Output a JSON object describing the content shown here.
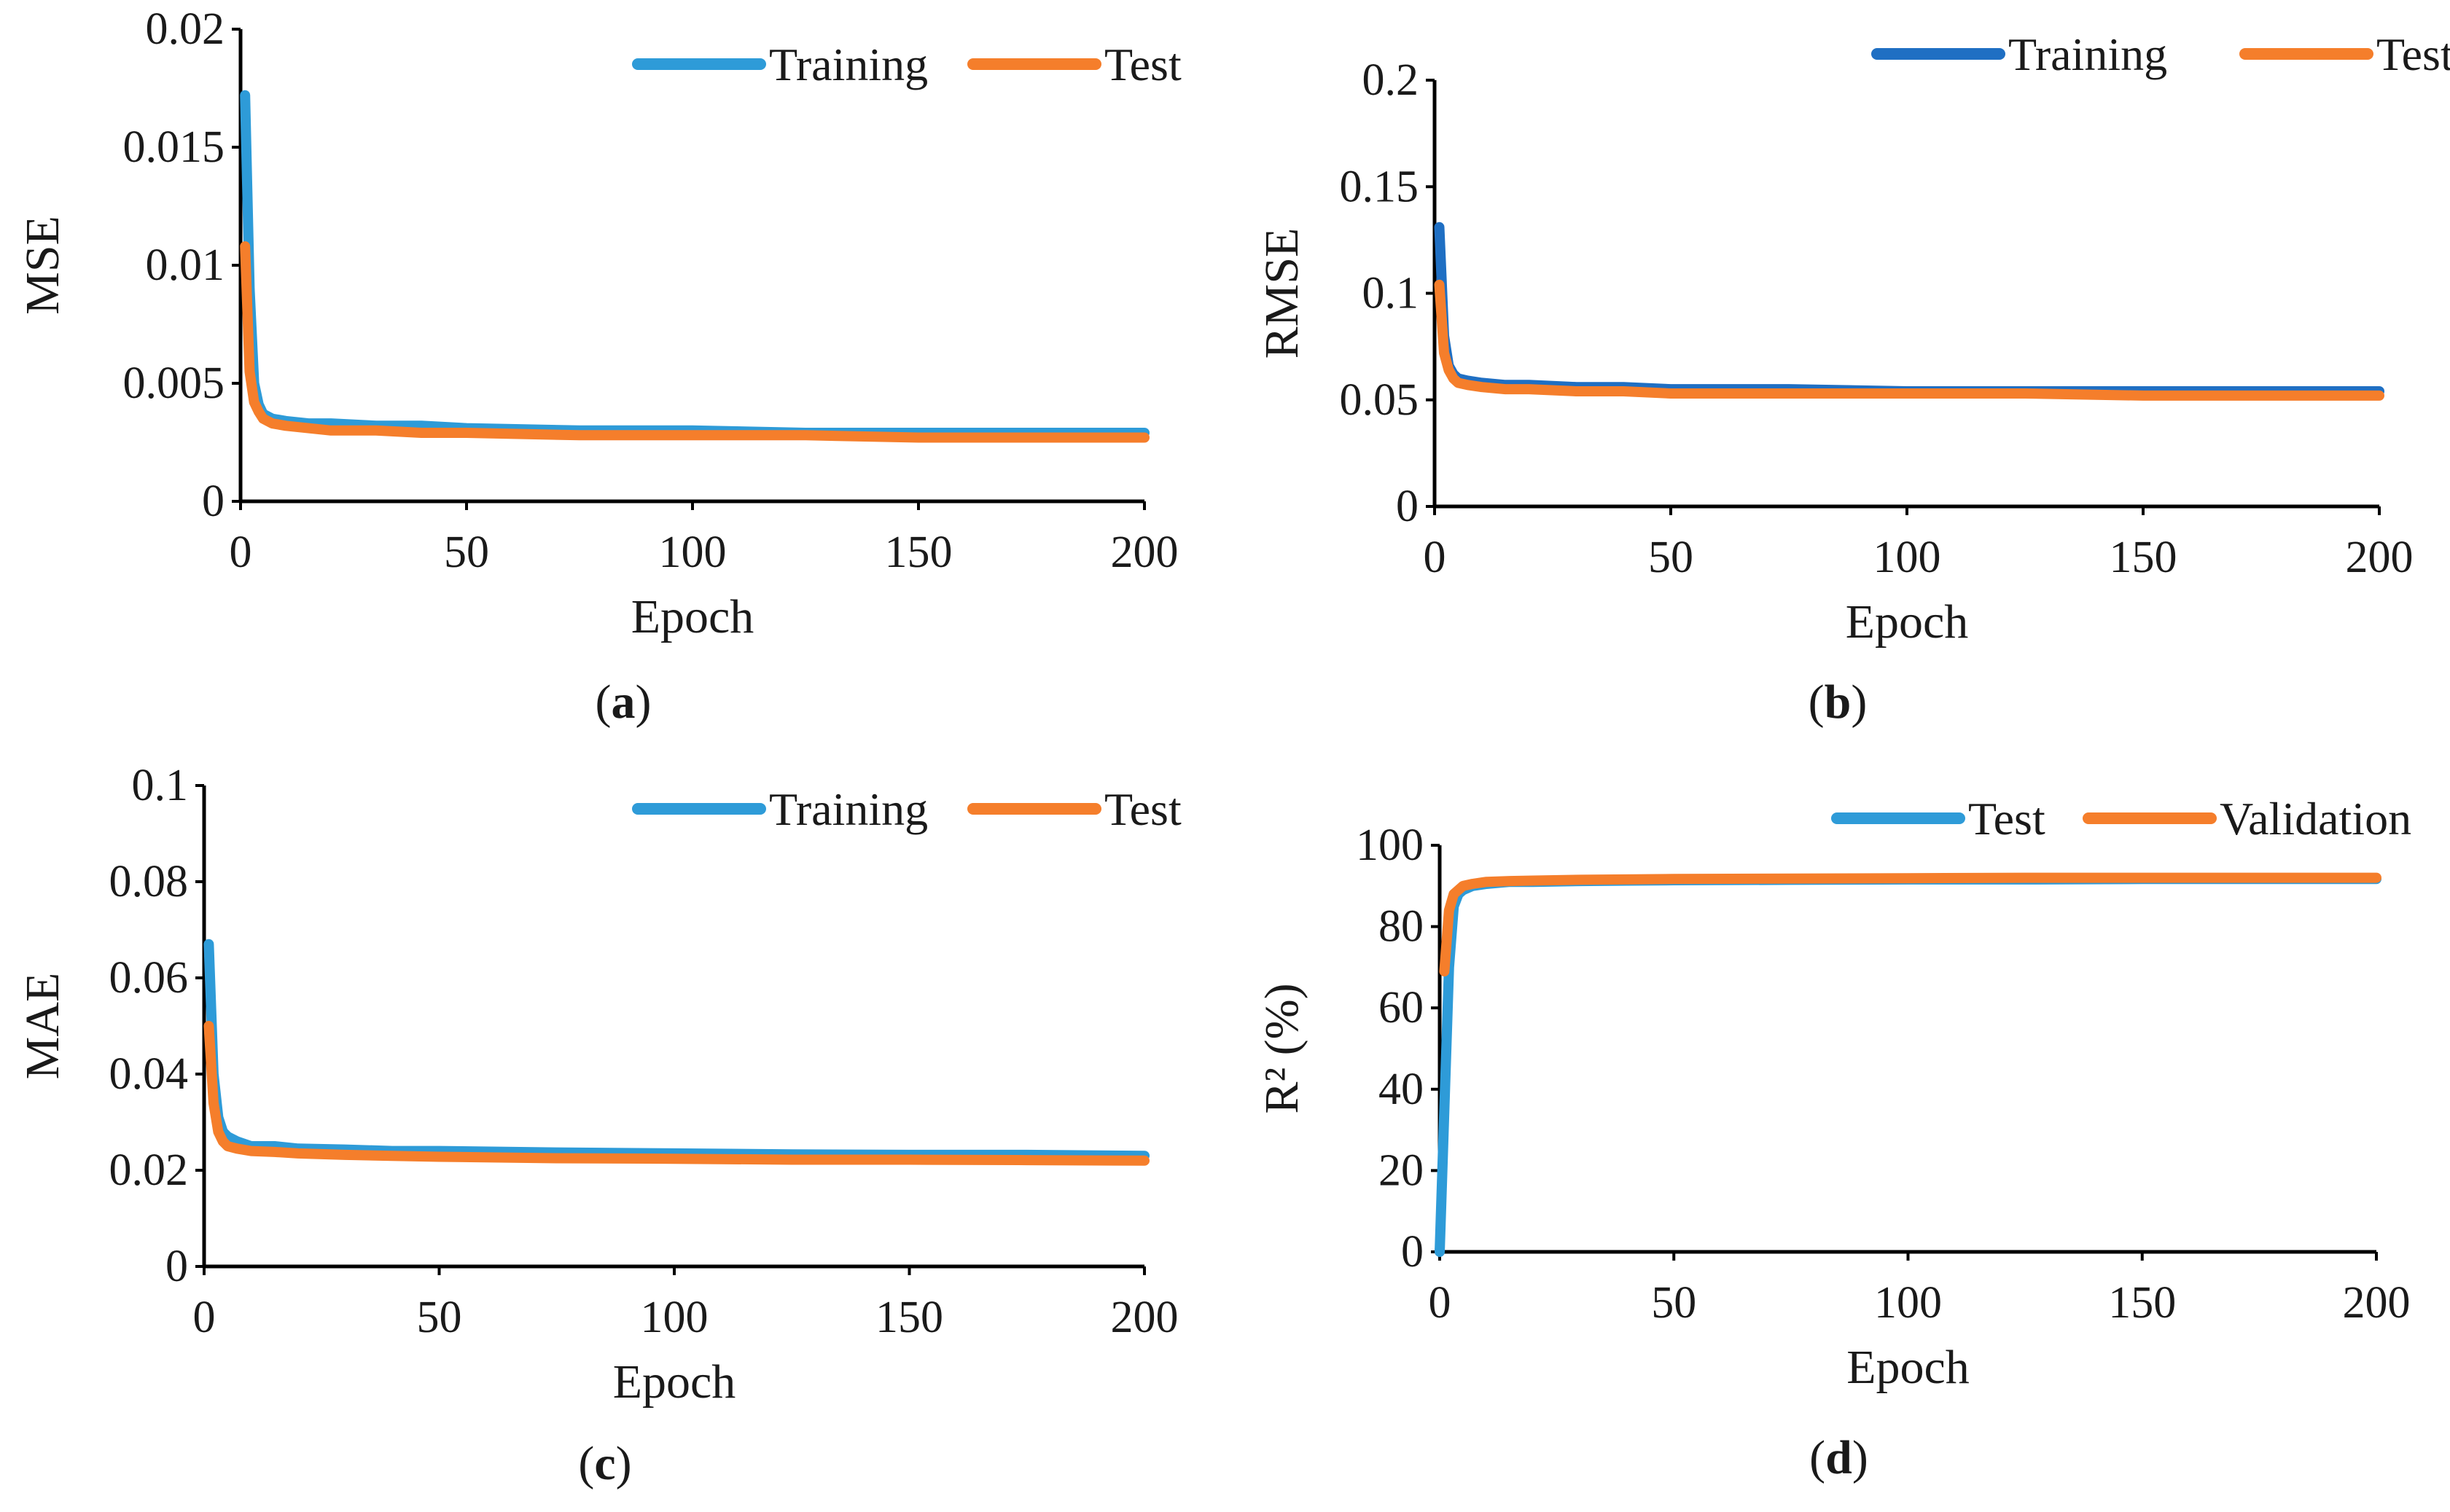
{
  "colors": {
    "training": "#2e9bd8",
    "training_dark": "#1f6fc3",
    "test": "#f57e2b",
    "test_r2": "#2e9bd8",
    "validation": "#f57e2b"
  },
  "chart_data": [
    {
      "id": "a",
      "type": "line",
      "panel_label": "a",
      "xlabel": "Epoch",
      "ylabel": "MSE",
      "xlim": [
        0,
        200
      ],
      "ylim": [
        0,
        0.02
      ],
      "xticks": [
        0,
        50,
        100,
        150,
        200
      ],
      "yticks": [
        0,
        0.005,
        0.01,
        0.015,
        0.02
      ],
      "ytick_labels": [
        "0",
        "0.005",
        "0.01",
        "0.015",
        "0.02"
      ],
      "legend_position": "top-right",
      "series": [
        {
          "name": "Training",
          "color_key": "training",
          "x": [
            1,
            2,
            3,
            4,
            5,
            7,
            10,
            15,
            20,
            30,
            40,
            50,
            75,
            100,
            125,
            150,
            175,
            200
          ],
          "y": [
            0.0172,
            0.009,
            0.005,
            0.0041,
            0.0037,
            0.0035,
            0.0034,
            0.0033,
            0.0033,
            0.0032,
            0.0032,
            0.0031,
            0.003,
            0.003,
            0.0029,
            0.0029,
            0.0029,
            0.0029
          ]
        },
        {
          "name": "Test",
          "color_key": "test",
          "x": [
            1,
            2,
            3,
            4,
            5,
            7,
            10,
            15,
            20,
            30,
            40,
            50,
            75,
            100,
            125,
            150,
            175,
            200
          ],
          "y": [
            0.0108,
            0.0055,
            0.0042,
            0.0038,
            0.0035,
            0.0033,
            0.0032,
            0.0031,
            0.003,
            0.003,
            0.0029,
            0.0029,
            0.0028,
            0.0028,
            0.0028,
            0.0027,
            0.0027,
            0.0027
          ]
        }
      ]
    },
    {
      "id": "b",
      "type": "line",
      "panel_label": "b",
      "xlabel": "Epoch",
      "ylabel": "RMSE",
      "xlim": [
        0,
        200
      ],
      "ylim": [
        0,
        0.2
      ],
      "xticks": [
        0,
        50,
        100,
        150,
        200
      ],
      "yticks": [
        0,
        0.05,
        0.1,
        0.15,
        0.2
      ],
      "ytick_labels": [
        "0",
        "0.05",
        "0.1",
        "0.15",
        "0.2"
      ],
      "legend_position": "top-right",
      "series": [
        {
          "name": "Training",
          "color_key": "training_dark",
          "x": [
            1,
            2,
            3,
            4,
            5,
            7,
            10,
            15,
            20,
            30,
            40,
            50,
            75,
            100,
            125,
            150,
            175,
            200
          ],
          "y": [
            0.131,
            0.08,
            0.066,
            0.062,
            0.06,
            0.059,
            0.058,
            0.057,
            0.057,
            0.056,
            0.056,
            0.055,
            0.055,
            0.054,
            0.054,
            0.054,
            0.054,
            0.054
          ]
        },
        {
          "name": "Test",
          "color_key": "test",
          "x": [
            1,
            2,
            3,
            4,
            5,
            7,
            10,
            15,
            20,
            30,
            40,
            50,
            75,
            100,
            125,
            150,
            175,
            200
          ],
          "y": [
            0.104,
            0.072,
            0.064,
            0.06,
            0.058,
            0.057,
            0.056,
            0.055,
            0.055,
            0.054,
            0.054,
            0.053,
            0.053,
            0.053,
            0.053,
            0.052,
            0.052,
            0.052
          ]
        }
      ]
    },
    {
      "id": "c",
      "type": "line",
      "panel_label": "c",
      "xlabel": "Epoch",
      "ylabel": "MAE",
      "xlim": [
        0,
        200
      ],
      "ylim": [
        0,
        0.1
      ],
      "xticks": [
        0,
        50,
        100,
        150,
        200
      ],
      "yticks": [
        0,
        0.02,
        0.04,
        0.06,
        0.08,
        0.1
      ],
      "ytick_labels": [
        "0",
        "0.02",
        "0.04",
        "0.06",
        "0.08",
        "0.1"
      ],
      "legend_position": "top-right",
      "series": [
        {
          "name": "Training",
          "color_key": "training",
          "x": [
            1,
            2,
            3,
            4,
            5,
            7,
            10,
            15,
            20,
            30,
            40,
            50,
            75,
            100,
            125,
            150,
            175,
            200
          ],
          "y": [
            0.067,
            0.04,
            0.031,
            0.028,
            0.027,
            0.026,
            0.025,
            0.025,
            0.0245,
            0.0243,
            0.024,
            0.024,
            0.0237,
            0.0235,
            0.0233,
            0.0232,
            0.0232,
            0.023
          ]
        },
        {
          "name": "Test",
          "color_key": "test",
          "x": [
            1,
            2,
            3,
            4,
            5,
            7,
            10,
            15,
            20,
            30,
            40,
            50,
            75,
            100,
            125,
            150,
            175,
            200
          ],
          "y": [
            0.05,
            0.034,
            0.028,
            0.026,
            0.025,
            0.0245,
            0.024,
            0.0238,
            0.0235,
            0.0232,
            0.023,
            0.0228,
            0.0225,
            0.0224,
            0.0222,
            0.0222,
            0.0221,
            0.022
          ]
        }
      ]
    },
    {
      "id": "d",
      "type": "line",
      "panel_label": "d",
      "xlabel": "Epoch",
      "ylabel": "R² (%)",
      "xlim": [
        0,
        200
      ],
      "ylim": [
        0,
        100
      ],
      "xticks": [
        0,
        50,
        100,
        150,
        200
      ],
      "yticks": [
        0,
        20,
        40,
        60,
        80,
        100
      ],
      "ytick_labels": [
        "0",
        "20",
        "40",
        "60",
        "80",
        "100"
      ],
      "legend_position": "top-right",
      "series": [
        {
          "name": "Test",
          "color_key": "test_r2",
          "x": [
            0,
            1,
            2,
            3,
            4,
            5,
            7,
            10,
            15,
            20,
            30,
            40,
            50,
            75,
            100,
            125,
            150,
            175,
            200
          ],
          "y": [
            0,
            35,
            70,
            85,
            88,
            89,
            90,
            90.5,
            91,
            91,
            91.2,
            91.3,
            91.4,
            91.5,
            91.6,
            91.6,
            91.7,
            91.7,
            91.7
          ]
        },
        {
          "name": "Validation",
          "color_key": "validation",
          "x": [
            1,
            2,
            3,
            4,
            5,
            7,
            10,
            15,
            20,
            30,
            40,
            50,
            75,
            100,
            125,
            150,
            175,
            200
          ],
          "y": [
            69,
            84,
            88,
            89,
            90,
            90.5,
            91,
            91.2,
            91.3,
            91.5,
            91.6,
            91.7,
            91.8,
            91.9,
            92,
            92,
            92,
            92
          ]
        }
      ]
    }
  ]
}
